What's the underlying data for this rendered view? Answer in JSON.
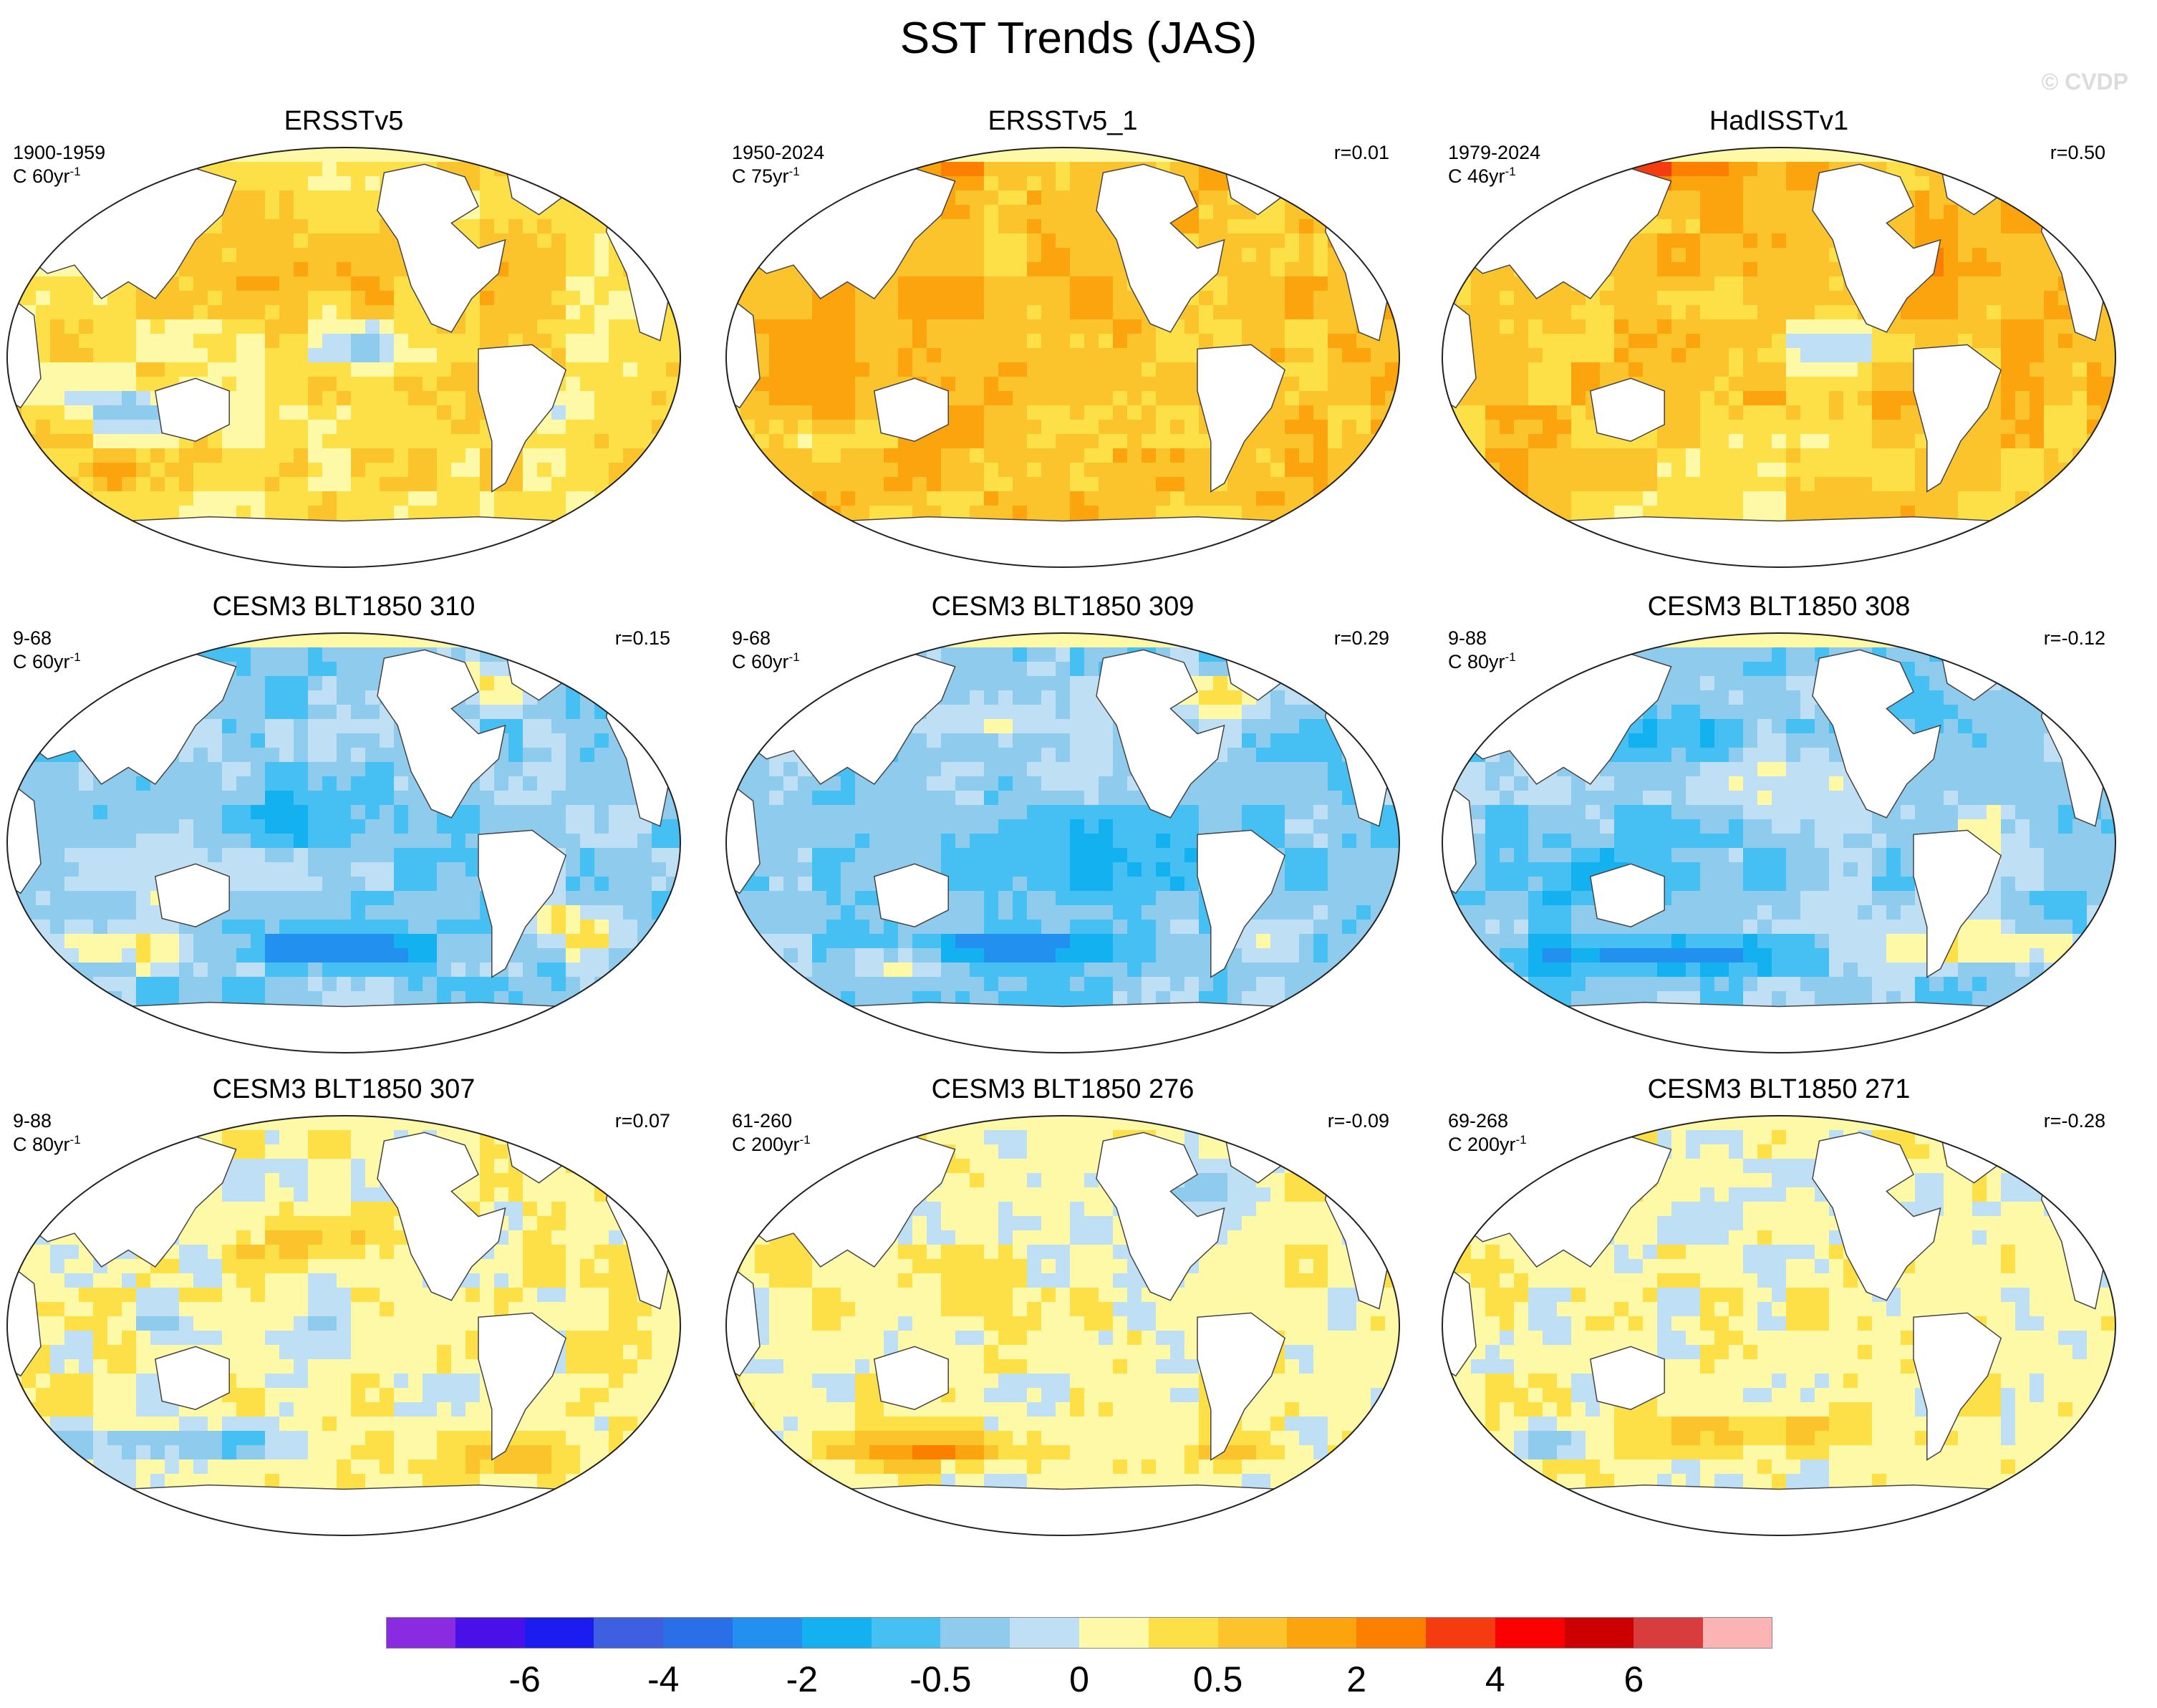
{
  "figure": {
    "title": "SST Trends (JAS)",
    "watermark": "© CVDP"
  },
  "panels": [
    {
      "title": "ERSSTv5",
      "period": "1900-1959",
      "units_base": "C 60yr",
      "units_exp": "-1",
      "corr": "",
      "pattern": {
        "base": 11,
        "blobs": [
          [
            0.45,
            0.3,
            0.18,
            0.1,
            1.2
          ],
          [
            0.7,
            0.35,
            0.14,
            0.12,
            0.8
          ],
          [
            0.52,
            0.48,
            0.1,
            0.06,
            -2.2
          ],
          [
            0.18,
            0.62,
            0.1,
            0.05,
            -2.6
          ],
          [
            0.82,
            0.62,
            0.05,
            0.06,
            -2.2
          ],
          [
            0.12,
            0.78,
            0.1,
            0.06,
            1.2
          ]
        ]
      }
    },
    {
      "title": "ERSSTv5_1",
      "period": "1950-2024",
      "units_base": "C 75yr",
      "units_exp": "-1",
      "corr": "r=0.01",
      "pattern": {
        "base": 12,
        "blobs": [
          [
            0.2,
            0.5,
            0.18,
            0.2,
            0.6
          ],
          [
            0.5,
            0.35,
            0.2,
            0.15,
            0.4
          ],
          [
            0.25,
            0.05,
            0.15,
            0.04,
            2.0
          ],
          [
            0.15,
            0.7,
            0.06,
            0.04,
            -2.0
          ],
          [
            0.7,
            0.88,
            0.1,
            0.04,
            -1.5
          ]
        ]
      }
    },
    {
      "title": "HadISSTv1",
      "period": "1979-2024",
      "units_base": "C 46yr",
      "units_exp": "-1",
      "corr": "r=0.50",
      "pattern": {
        "base": 12,
        "blobs": [
          [
            0.58,
            0.48,
            0.12,
            0.06,
            -2.6
          ],
          [
            0.55,
            0.75,
            0.25,
            0.08,
            -1.5
          ],
          [
            0.3,
            0.05,
            0.15,
            0.04,
            2.2
          ],
          [
            0.72,
            0.3,
            0.1,
            0.12,
            1.0
          ],
          [
            0.35,
            0.88,
            0.2,
            0.06,
            -1.2
          ]
        ]
      }
    },
    {
      "title": "CESM3 BLT1850 310",
      "period": "9-68",
      "units_base": "C 60yr",
      "units_exp": "-1",
      "corr": "r=0.15",
      "pattern": {
        "base": 8,
        "blobs": [
          [
            0.45,
            0.45,
            0.2,
            0.08,
            -1.5
          ],
          [
            0.25,
            0.55,
            0.12,
            0.1,
            1.5
          ],
          [
            0.48,
            0.75,
            0.16,
            0.04,
            -3.5
          ],
          [
            0.85,
            0.7,
            0.06,
            0.06,
            3.5
          ],
          [
            0.15,
            0.75,
            0.12,
            0.05,
            2.8
          ],
          [
            0.15,
            0.05,
            0.12,
            0.04,
            -2.0
          ],
          [
            0.72,
            0.12,
            0.06,
            0.06,
            2.5
          ]
        ]
      }
    },
    {
      "title": "CESM3 BLT1850 309",
      "period": "9-68",
      "units_base": "C 60yr",
      "units_exp": "-1",
      "corr": "r=0.29",
      "pattern": {
        "base": 8,
        "blobs": [
          [
            0.4,
            0.2,
            0.1,
            0.06,
            2.0
          ],
          [
            0.75,
            0.15,
            0.08,
            0.06,
            2.5
          ],
          [
            0.5,
            0.55,
            0.25,
            0.12,
            -1.5
          ],
          [
            0.4,
            0.75,
            0.2,
            0.04,
            -3.0
          ],
          [
            0.8,
            0.75,
            0.06,
            0.04,
            2.5
          ],
          [
            0.25,
            0.78,
            0.08,
            0.04,
            2.0
          ]
        ]
      }
    },
    {
      "title": "CESM3 BLT1850 308",
      "period": "9-88",
      "units_base": "C 80yr",
      "units_exp": "-1",
      "corr": "r=-0.12",
      "pattern": {
        "base": 8,
        "blobs": [
          [
            0.35,
            0.25,
            0.1,
            0.06,
            -2.2
          ],
          [
            0.52,
            0.35,
            0.14,
            0.1,
            1.4
          ],
          [
            0.25,
            0.58,
            0.15,
            0.08,
            -2.0
          ],
          [
            0.3,
            0.77,
            0.18,
            0.04,
            -3.5
          ],
          [
            0.8,
            0.75,
            0.14,
            0.05,
            3.0
          ],
          [
            0.82,
            0.5,
            0.1,
            0.1,
            1.6
          ],
          [
            0.72,
            0.18,
            0.06,
            0.06,
            -2.0
          ]
        ]
      }
    },
    {
      "title": "CESM3 BLT1850 307",
      "period": "9-88",
      "units_base": "C 80yr",
      "units_exp": "-1",
      "corr": "r=0.07",
      "pattern": {
        "base": 10,
        "blobs": [
          [
            0.45,
            0.3,
            0.1,
            0.06,
            2.0
          ],
          [
            0.45,
            0.55,
            0.12,
            0.08,
            -1.0
          ],
          [
            0.25,
            0.78,
            0.16,
            0.04,
            -3.0
          ],
          [
            0.75,
            0.8,
            0.12,
            0.06,
            2.8
          ],
          [
            0.25,
            0.5,
            0.06,
            0.04,
            -1.8
          ]
        ]
      }
    },
    {
      "title": "CESM3 BLT1850 276",
      "period": "61-260",
      "units_base": "C 200yr",
      "units_exp": "-1",
      "corr": "r=-0.09",
      "pattern": {
        "base": 10,
        "blobs": [
          [
            0.3,
            0.8,
            0.16,
            0.04,
            2.8
          ],
          [
            0.7,
            0.2,
            0.06,
            0.08,
            -1.8
          ],
          [
            0.45,
            0.25,
            0.08,
            0.05,
            -1.0
          ],
          [
            0.75,
            0.8,
            0.06,
            0.04,
            1.5
          ]
        ]
      }
    },
    {
      "title": "CESM3 BLT1850 271",
      "period": "69-268",
      "units_base": "C 200yr",
      "units_exp": "-1",
      "corr": "r=-0.28",
      "pattern": {
        "base": 10,
        "blobs": [
          [
            0.45,
            0.75,
            0.18,
            0.05,
            1.4
          ],
          [
            0.15,
            0.78,
            0.06,
            0.04,
            -2.0
          ],
          [
            0.4,
            0.25,
            0.06,
            0.05,
            -1.0
          ],
          [
            0.7,
            0.2,
            0.06,
            0.06,
            -1.2
          ],
          [
            0.7,
            0.55,
            0.08,
            0.08,
            0.6
          ]
        ]
      }
    }
  ],
  "colorbar": {
    "colors": [
      "#8a2be2",
      "#4a10e8",
      "#1a1cf0",
      "#3e5fe0",
      "#2b6fe8",
      "#2190ee",
      "#14b1f0",
      "#46bff2",
      "#8ecbec",
      "#bfe0f4",
      "#fdf9a7",
      "#fde048",
      "#fcc42c",
      "#fca40e",
      "#fd7f00",
      "#f53c10",
      "#fb0000",
      "#cc0000",
      "#d83c3c",
      "#fcb3b3"
    ],
    "labels": [
      "-6",
      "-4",
      "-2",
      "-0.5",
      "0",
      "0.5",
      "2",
      "4",
      "6"
    ],
    "label_boundaries": [
      2,
      4,
      6,
      8,
      10,
      12,
      14,
      16,
      18
    ]
  }
}
